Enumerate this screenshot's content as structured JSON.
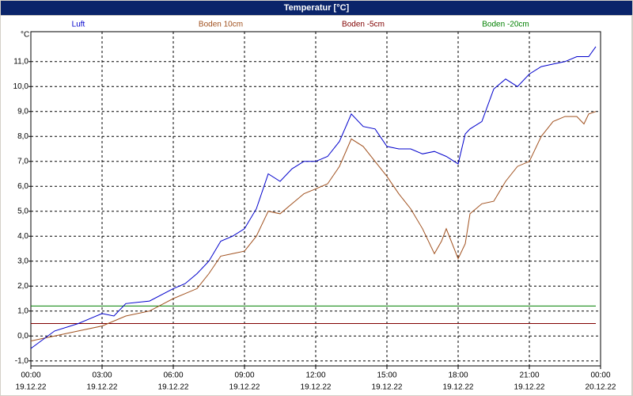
{
  "chart_data": {
    "type": "line",
    "title": "Temperatur [°C]",
    "y_label": "°C",
    "xlim": [
      0,
      24
    ],
    "ylim": [
      -1.2,
      12.2
    ],
    "xticks": [
      {
        "value": 0,
        "label": "00:00"
      },
      {
        "value": 3,
        "label": "03:00"
      },
      {
        "value": 6,
        "label": "06:00"
      },
      {
        "value": 9,
        "label": "09:00"
      },
      {
        "value": 12,
        "label": "12:00"
      },
      {
        "value": 15,
        "label": "15:00"
      },
      {
        "value": 18,
        "label": "18:00"
      },
      {
        "value": 21,
        "label": "21:00"
      },
      {
        "value": 24,
        "label": "00:00"
      }
    ],
    "xtick_dates": [
      "19.12.22",
      "19.12.22",
      "19.12.22",
      "19.12.22",
      "19.12.22",
      "19.12.22",
      "19.12.22",
      "19.12.22",
      "20.12.22"
    ],
    "yticks": [
      {
        "value": -1,
        "label": "-1,0"
      },
      {
        "value": 0,
        "label": "0,0"
      },
      {
        "value": 1,
        "label": "1,0"
      },
      {
        "value": 2,
        "label": "2,0"
      },
      {
        "value": 3,
        "label": "3,0"
      },
      {
        "value": 4,
        "label": "4,0"
      },
      {
        "value": 5,
        "label": "5,0"
      },
      {
        "value": 6,
        "label": "6,0"
      },
      {
        "value": 7,
        "label": "7,0"
      },
      {
        "value": 8,
        "label": "8,0"
      },
      {
        "value": 9,
        "label": "9,0"
      },
      {
        "value": 10,
        "label": "10,0"
      },
      {
        "value": 11,
        "label": "11,0"
      }
    ],
    "grid": true,
    "series": [
      {
        "name": "Luft",
        "color": "#0000cc",
        "x": [
          0,
          1,
          2,
          2.5,
          3,
          3.5,
          4,
          5,
          6,
          6.5,
          7,
          7.5,
          8,
          8.5,
          9,
          9.5,
          10,
          10.5,
          11,
          11.5,
          12,
          12.5,
          13,
          13.5,
          14,
          14.5,
          15,
          15.5,
          16,
          16.5,
          17,
          17.5,
          18,
          18.3,
          18.5,
          19,
          19.5,
          20,
          20.5,
          21,
          21.5,
          22,
          22.5,
          23,
          23.5,
          23.8
        ],
        "values": [
          -0.5,
          0.2,
          0.5,
          0.7,
          0.9,
          0.8,
          1.3,
          1.4,
          1.9,
          2.1,
          2.5,
          3.0,
          3.8,
          4.0,
          4.3,
          5.1,
          6.5,
          6.2,
          6.7,
          7.0,
          7.0,
          7.2,
          7.8,
          8.9,
          8.4,
          8.3,
          7.6,
          7.5,
          7.5,
          7.3,
          7.4,
          7.2,
          6.9,
          8.1,
          8.3,
          8.6,
          9.9,
          10.3,
          10.0,
          10.5,
          10.8,
          10.9,
          11.0,
          11.2,
          11.2,
          11.6
        ]
      },
      {
        "name": "Boden 10cm",
        "color": "#a0501e",
        "x": [
          0,
          1,
          2,
          3,
          4,
          5,
          6,
          6.5,
          7,
          7.5,
          8,
          8.5,
          9,
          9.5,
          10,
          10.5,
          11,
          11.5,
          12,
          12.5,
          13,
          13.5,
          14,
          14.5,
          15,
          15.5,
          16,
          16.5,
          17,
          17.3,
          17.5,
          18,
          18.3,
          18.5,
          19,
          19.5,
          20,
          20.5,
          21,
          21.5,
          22,
          22.5,
          23,
          23.3,
          23.5,
          23.8
        ],
        "values": [
          -0.2,
          0.0,
          0.2,
          0.4,
          0.8,
          1.0,
          1.5,
          1.7,
          1.9,
          2.5,
          3.2,
          3.3,
          3.4,
          4.0,
          5.0,
          4.9,
          5.3,
          5.7,
          5.9,
          6.1,
          6.8,
          7.9,
          7.6,
          7.0,
          6.4,
          5.7,
          5.1,
          4.3,
          3.3,
          3.8,
          4.3,
          3.1,
          3.7,
          4.9,
          5.3,
          5.4,
          6.2,
          6.8,
          7.0,
          8.0,
          8.6,
          8.8,
          8.8,
          8.5,
          8.9,
          9.0
        ]
      },
      {
        "name": "Boden -5cm",
        "color": "#800000",
        "x": [
          0,
          23.8
        ],
        "values": [
          0.5,
          0.5
        ]
      },
      {
        "name": "Boden -20cm",
        "color": "#008000",
        "x": [
          0,
          23.8
        ],
        "values": [
          1.2,
          1.2
        ]
      }
    ]
  }
}
